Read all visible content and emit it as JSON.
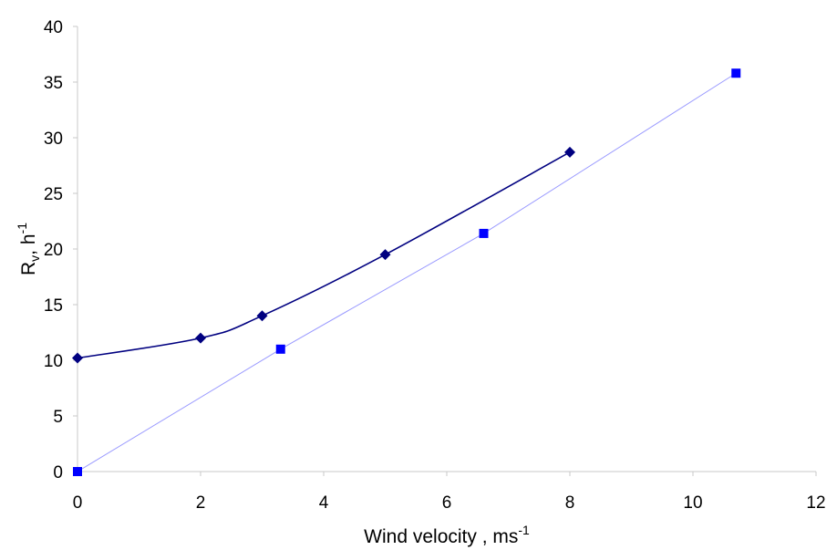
{
  "chart_data": {
    "type": "scatter",
    "title": "",
    "xlabel": "Wind velocity , ms",
    "xlabel_sup": "-1",
    "ylabel_main": "R",
    "ylabel_sub": "v",
    "ylabel_mid": ", h",
    "ylabel_sup": "-1",
    "xlim": [
      0,
      12
    ],
    "ylim": [
      0,
      40
    ],
    "xticks": [
      0,
      2,
      4,
      6,
      8,
      10,
      12
    ],
    "yticks": [
      0,
      5,
      10,
      15,
      20,
      25,
      30,
      35,
      40
    ],
    "grid": false,
    "legend": "none",
    "series": [
      {
        "marker": "diamond",
        "color": "#000080",
        "line": "smooth",
        "x": [
          0,
          2,
          3,
          5,
          8
        ],
        "y": [
          10.2,
          12.0,
          14.0,
          19.5,
          28.7
        ]
      },
      {
        "marker": "square",
        "color": "#0000ff",
        "line_color": "#9999ff",
        "line": "straight",
        "x": [
          0,
          3.3,
          6.6,
          10.7
        ],
        "y": [
          0,
          11.0,
          21.4,
          35.8
        ]
      }
    ]
  }
}
